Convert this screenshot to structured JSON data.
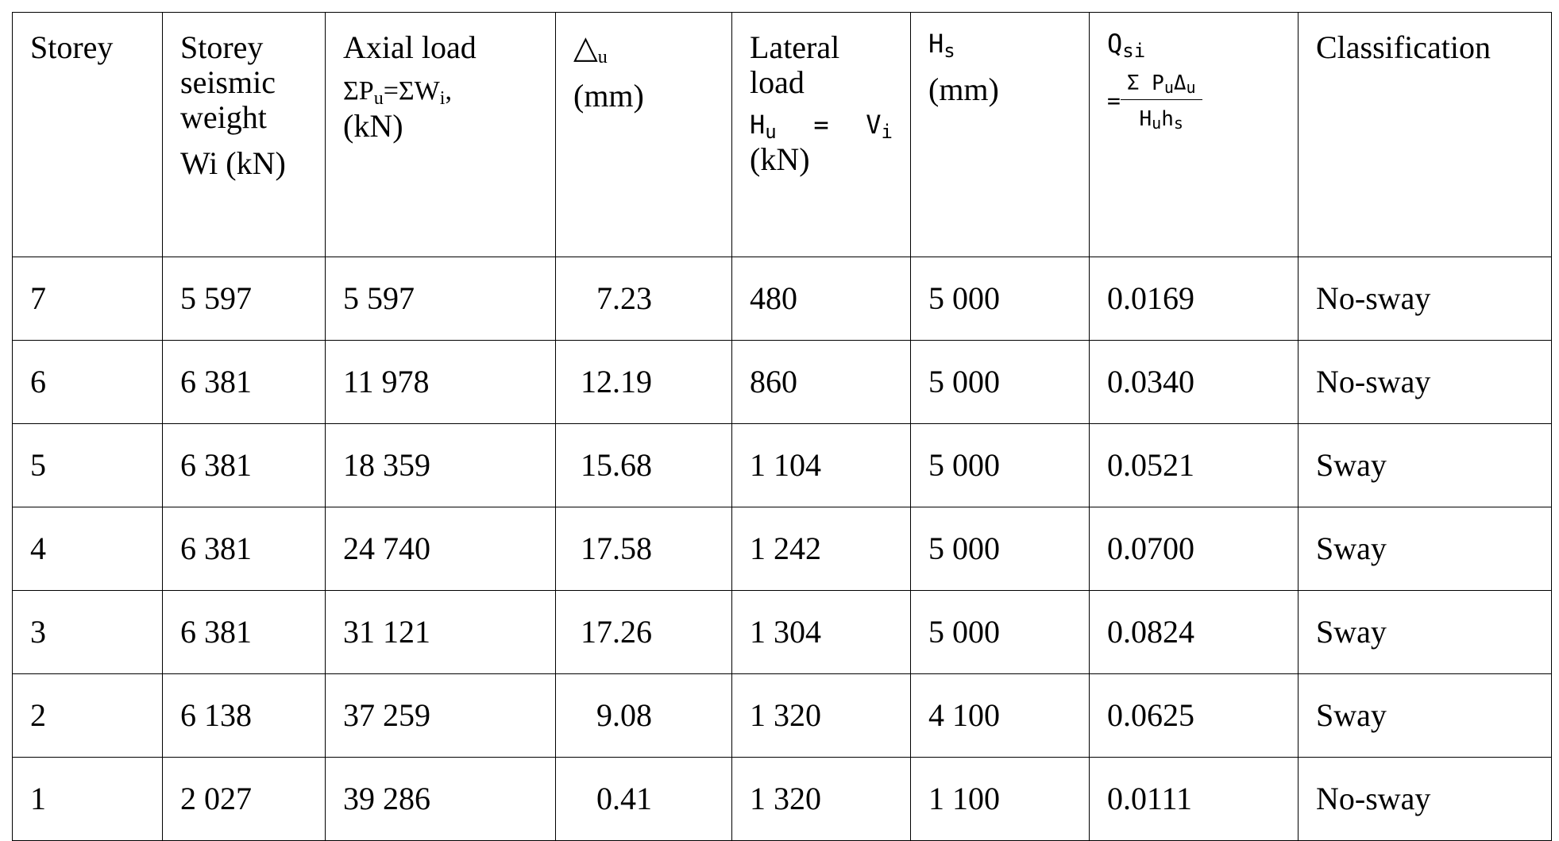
{
  "table": {
    "header": [
      [
        "Storey"
      ],
      [
        "Storey",
        "seismic",
        "weight",
        "Wi (kN)"
      ],
      [
        "Axial load",
        "ΣP",
        "u",
        "=ΣW",
        "i",
        ",",
        "(kN)"
      ],
      [
        "△",
        "u",
        "(mm)"
      ],
      [
        "Lateral",
        "load",
        "H",
        "u",
        "=",
        "V",
        "i",
        "(kN)"
      ],
      [
        "H",
        "s",
        "(mm)"
      ],
      [
        "Q",
        "si",
        "=",
        "Σ P",
        "u",
        "Δ",
        "u",
        "H",
        "u",
        "h",
        "s"
      ],
      [
        "Classification"
      ]
    ],
    "rows": [
      [
        "7",
        "5 597",
        "5 597",
        "7.23",
        "480",
        "5 000",
        "0.0169",
        "No-sway"
      ],
      [
        "6",
        "6 381",
        "11 978",
        "12.19",
        "860",
        "5 000",
        "0.0340",
        "No-sway"
      ],
      [
        "5",
        "6 381",
        "18 359",
        "15.68",
        "1 104",
        "5 000",
        "0.0521",
        "Sway"
      ],
      [
        "4",
        "6 381",
        "24 740",
        "17.58",
        "1 242",
        "5 000",
        "0.0700",
        "Sway"
      ],
      [
        "3",
        "6 381",
        "31 121",
        "17.26",
        "1 304",
        "5 000",
        "0.0824",
        "Sway"
      ],
      [
        "2",
        "6 138",
        "37 259",
        "9.08",
        "1 320",
        "4 100",
        "0.0625",
        "Sway"
      ],
      [
        "1",
        "2 027",
        "39 286",
        "0.41",
        "1 320",
        "1 100",
        "0.0111",
        "No-sway"
      ]
    ]
  }
}
